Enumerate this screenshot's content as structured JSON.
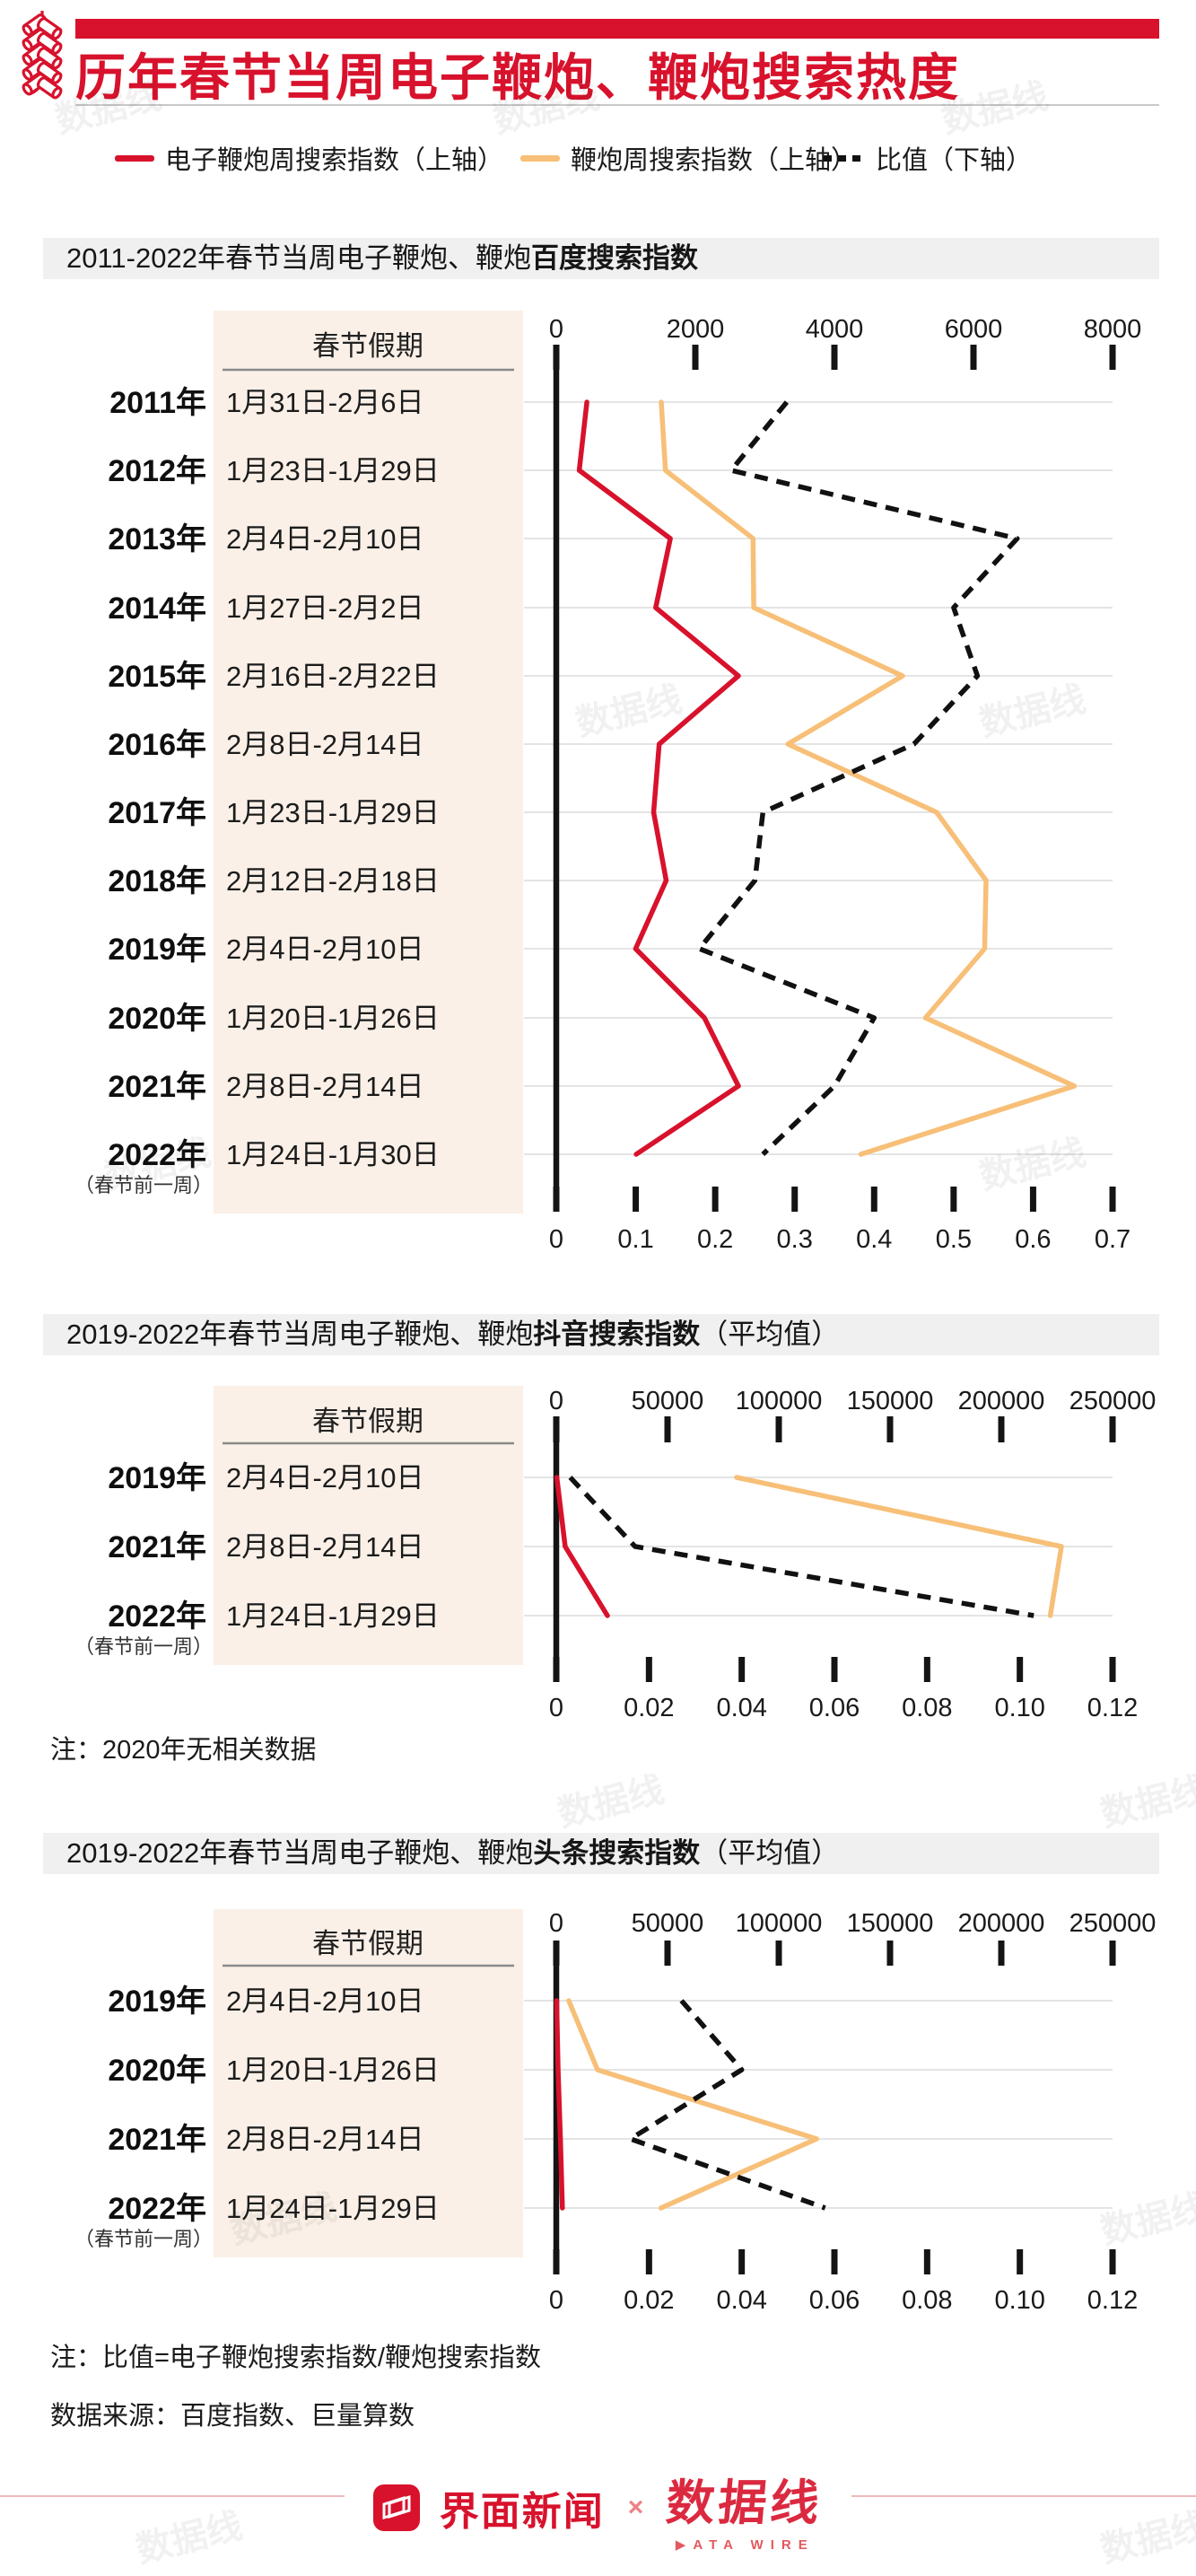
{
  "colors": {
    "red": "#d8122c",
    "orange": "#f7bf77",
    "black": "#111111",
    "panel": "#faf0e7",
    "band_gray": "#f0f0f0",
    "grid": "#dcdcdc"
  },
  "header": {
    "title": "历年春节当周电子鞭炮、鞭炮搜索热度"
  },
  "legend": [
    {
      "label": "电子鞭炮周搜索指数（上轴）",
      "swatch": "solid-red"
    },
    {
      "label": "鞭炮周搜索指数（上轴）",
      "swatch": "solid-orange"
    },
    {
      "label": "比值（下轴）",
      "swatch": "dashed-black"
    }
  ],
  "table_header": "春节假期",
  "pre_holiday_note": "（春节前一周）",
  "sections": [
    {
      "title_prefix": "2011-2022年春节当周电子鞭炮、鞭炮",
      "title_bold": "百度搜索指数",
      "title_suffix": ""
    },
    {
      "title_prefix": "2019-2022年春节当周电子鞭炮、鞭炮",
      "title_bold": "抖音搜索指数",
      "title_suffix": "（平均值）",
      "note": "注：2020年无相关数据"
    },
    {
      "title_prefix": "2019-2022年春节当周电子鞭炮、鞭炮",
      "title_bold": "头条搜索指数",
      "title_suffix": "（平均值）"
    }
  ],
  "footnotes": [
    "注：比值=电子鞭炮搜索指数/鞭炮搜索指数",
    "数据来源：百度指数、巨量算数"
  ],
  "footer": {
    "jiemian_label": "界面新闻",
    "cross": "×",
    "datawire_label": "数据线",
    "datawire_sub_play": "▶",
    "datawire_sub_rest": "ATA WIRE"
  },
  "watermark_text": "数据线",
  "chart_data": [
    {
      "type": "line",
      "title": "2011-2022年春节当周电子鞭炮、鞭炮百度搜索指数",
      "categories": [
        "2011年",
        "2012年",
        "2013年",
        "2014年",
        "2015年",
        "2016年",
        "2017年",
        "2018年",
        "2019年",
        "2020年",
        "2021年",
        "2022年"
      ],
      "holiday_dates": [
        "1月31日-2月6日",
        "1月23日-1月29日",
        "2月4日-2月10日",
        "1月27日-2月2日",
        "2月16日-2月22日",
        "2月8日-2月14日",
        "1月23日-1月29日",
        "2月12日-2月18日",
        "2月4日-2月10日",
        "1月20日-1月26日",
        "2月8日-2月14日",
        "1月24日-1月30日"
      ],
      "last_category_note": "（春节前一周）",
      "top_axis": {
        "ticks": [
          0,
          2000,
          4000,
          6000,
          8000
        ],
        "max": 8000
      },
      "bottom_axis": {
        "ticks": [
          0,
          0.1,
          0.2,
          0.3,
          0.4,
          0.5,
          0.6,
          0.7
        ],
        "max": 0.7,
        "decimals": 1
      },
      "grid": true,
      "legend_position": "top",
      "series": [
        {
          "key": "electronic-firecracker",
          "name": "电子鞭炮周搜索指数",
          "axis": "top",
          "style": "solid",
          "color_key": "red",
          "values": [
            440,
            330,
            1640,
            1430,
            2620,
            1480,
            1400,
            1580,
            1140,
            2130,
            2620,
            1150
          ]
        },
        {
          "key": "firecracker",
          "name": "鞭炮周搜索指数",
          "axis": "top",
          "style": "solid",
          "color_key": "orange",
          "values": [
            1510,
            1570,
            2830,
            2840,
            4980,
            3330,
            5470,
            6180,
            6160,
            5310,
            7450,
            4380
          ]
        },
        {
          "key": "ratio",
          "name": "比值",
          "axis": "bottom",
          "style": "dashed",
          "color_key": "black",
          "values": [
            0.29,
            0.22,
            0.58,
            0.5,
            0.53,
            0.45,
            0.26,
            0.25,
            0.18,
            0.4,
            0.35,
            0.26
          ]
        }
      ]
    },
    {
      "type": "line",
      "title": "2019-2022年春节当周电子鞭炮、鞭炮抖音搜索指数（平均值）",
      "categories": [
        "2019年",
        "2021年",
        "2022年"
      ],
      "holiday_dates": [
        "2月4日-2月10日",
        "2月8日-2月14日",
        "1月24日-1月29日"
      ],
      "last_category_note": "（春节前一周）",
      "note": "注：2020年无相关数据",
      "top_axis": {
        "ticks": [
          0,
          50000,
          100000,
          150000,
          200000,
          250000
        ],
        "max": 250000
      },
      "bottom_axis": {
        "ticks": [
          0,
          0.02,
          0.04,
          0.06,
          0.08,
          0.1,
          0.12
        ],
        "max": 0.12,
        "decimals": 2
      },
      "grid": true,
      "legend_position": "top",
      "series": [
        {
          "key": "electronic-firecracker",
          "name": "电子鞭炮周搜索指数",
          "axis": "top",
          "style": "solid",
          "color_key": "red",
          "values": [
            250,
            4000,
            23000
          ]
        },
        {
          "key": "firecracker",
          "name": "鞭炮周搜索指数",
          "axis": "top",
          "style": "solid",
          "color_key": "orange",
          "values": [
            81000,
            227000,
            222000
          ]
        },
        {
          "key": "ratio",
          "name": "比值",
          "axis": "bottom",
          "style": "dashed",
          "color_key": "black",
          "values": [
            0.003,
            0.017,
            0.103
          ]
        }
      ]
    },
    {
      "type": "line",
      "title": "2019-2022年春节当周电子鞭炮、鞭炮头条搜索指数（平均值）",
      "categories": [
        "2019年",
        "2020年",
        "2021年",
        "2022年"
      ],
      "holiday_dates": [
        "2月4日-2月10日",
        "1月20日-1月26日",
        "2月8日-2月14日",
        "1月24日-1月29日"
      ],
      "last_category_note": "（春节前一周）",
      "top_axis": {
        "ticks": [
          0,
          50000,
          100000,
          150000,
          200000,
          250000
        ],
        "max": 250000
      },
      "bottom_axis": {
        "ticks": [
          0,
          0.02,
          0.04,
          0.06,
          0.08,
          0.1,
          0.12
        ],
        "max": 0.12,
        "decimals": 2
      },
      "grid": true,
      "legend_position": "top",
      "series": [
        {
          "key": "electronic-firecracker",
          "name": "电子鞭炮周搜索指数",
          "axis": "top",
          "style": "solid",
          "color_key": "red",
          "values": [
            150,
            800,
            1870,
            2730
          ]
        },
        {
          "key": "firecracker",
          "name": "鞭炮周搜索指数",
          "axis": "top",
          "style": "solid",
          "color_key": "orange",
          "values": [
            5600,
            18500,
            117000,
            47000
          ]
        },
        {
          "key": "ratio",
          "name": "比值",
          "axis": "bottom",
          "style": "dashed",
          "color_key": "black",
          "values": [
            0.027,
            0.04,
            0.016,
            0.058
          ]
        }
      ]
    }
  ]
}
